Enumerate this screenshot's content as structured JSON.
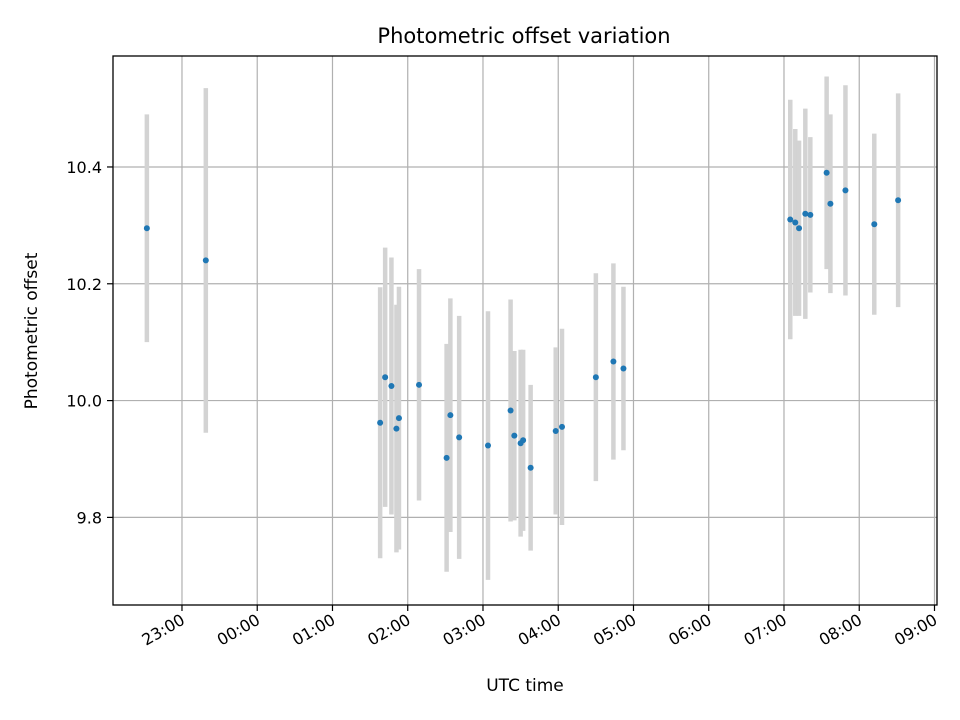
{
  "chart_data": {
    "type": "scatter",
    "title": "Photometric offset variation",
    "xlabel": "UTC time",
    "ylabel": "Photometric offset",
    "grid": true,
    "xlim": [
      "22:05",
      "09:02"
    ],
    "ylim": [
      9.65,
      10.59
    ],
    "x_ticks": [
      "23:00",
      "00:00",
      "01:00",
      "02:00",
      "03:00",
      "04:00",
      "05:00",
      "06:00",
      "07:00",
      "08:00",
      "09:00"
    ],
    "y_ticks": [
      9.8,
      10.0,
      10.2,
      10.4
    ],
    "y_tick_labels": [
      "9.8",
      "10.0",
      "10.2",
      "10.4"
    ],
    "point_color": "#1f77b4",
    "errorbar_color": "#d3d3d3",
    "points": [
      {
        "x": "22:32",
        "y": 10.295,
        "err": 0.195
      },
      {
        "x": "23:19",
        "y": 10.24,
        "err": 0.295
      },
      {
        "x": "01:38",
        "y": 9.962,
        "err": 0.232
      },
      {
        "x": "01:42",
        "y": 10.04,
        "err": 0.222
      },
      {
        "x": "01:47",
        "y": 10.025,
        "err": 0.22
      },
      {
        "x": "01:51",
        "y": 9.952,
        "err": 0.212
      },
      {
        "x": "01:53",
        "y": 9.97,
        "err": 0.225
      },
      {
        "x": "02:09",
        "y": 10.027,
        "err": 0.198
      },
      {
        "x": "02:31",
        "y": 9.902,
        "err": 0.195
      },
      {
        "x": "02:34",
        "y": 9.975,
        "err": 0.2
      },
      {
        "x": "02:41",
        "y": 9.937,
        "err": 0.208
      },
      {
        "x": "03:04",
        "y": 9.923,
        "err": 0.23
      },
      {
        "x": "03:22",
        "y": 9.983,
        "err": 0.19
      },
      {
        "x": "03:25",
        "y": 9.94,
        "err": 0.145
      },
      {
        "x": "03:30",
        "y": 9.927,
        "err": 0.16
      },
      {
        "x": "03:32",
        "y": 9.932,
        "err": 0.155
      },
      {
        "x": "03:38",
        "y": 9.885,
        "err": 0.142
      },
      {
        "x": "03:58",
        "y": 9.948,
        "err": 0.143
      },
      {
        "x": "04:03",
        "y": 9.955,
        "err": 0.168
      },
      {
        "x": "04:30",
        "y": 10.04,
        "err": 0.178
      },
      {
        "x": "04:44",
        "y": 10.067,
        "err": 0.168
      },
      {
        "x": "04:52",
        "y": 10.055,
        "err": 0.14
      },
      {
        "x": "07:05",
        "y": 10.31,
        "err": 0.205
      },
      {
        "x": "07:09",
        "y": 10.305,
        "err": 0.16
      },
      {
        "x": "07:12",
        "y": 10.295,
        "err": 0.15
      },
      {
        "x": "07:17",
        "y": 10.32,
        "err": 0.18
      },
      {
        "x": "07:21",
        "y": 10.318,
        "err": 0.133
      },
      {
        "x": "07:34",
        "y": 10.39,
        "err": 0.165
      },
      {
        "x": "07:37",
        "y": 10.337,
        "err": 0.153
      },
      {
        "x": "07:49",
        "y": 10.36,
        "err": 0.18
      },
      {
        "x": "08:12",
        "y": 10.302,
        "err": 0.155
      },
      {
        "x": "08:31",
        "y": 10.343,
        "err": 0.183
      }
    ]
  }
}
